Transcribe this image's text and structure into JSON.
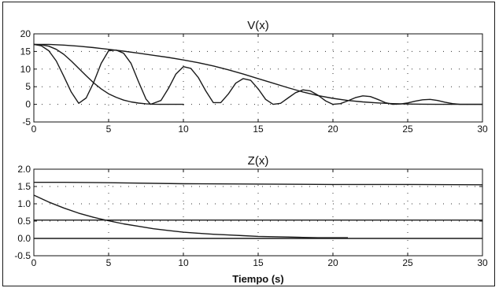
{
  "chart_data": [
    {
      "type": "line",
      "title": "V(x)",
      "xlabel": "",
      "ylabel": "",
      "xlim": [
        0,
        30
      ],
      "ylim": [
        -5,
        20
      ],
      "xticks": [
        0,
        5,
        10,
        15,
        20,
        25,
        30
      ],
      "yticks": [
        -5,
        0,
        5,
        10,
        15,
        20
      ],
      "grid": "dotted",
      "series": [
        {
          "x": [
            0,
            1,
            2,
            3,
            4,
            5,
            6,
            7,
            8,
            9,
            10,
            11,
            12,
            13,
            14,
            15,
            16,
            17,
            18,
            19,
            20,
            21,
            22,
            23,
            24,
            25,
            26,
            27,
            28,
            29,
            30
          ],
          "y": [
            17,
            17,
            16.8,
            16.5,
            16.1,
            15.6,
            15.1,
            14.5,
            13.9,
            13.3,
            12.6,
            11.8,
            10.9,
            9.8,
            8.6,
            7.3,
            6,
            4.7,
            3.5,
            2.5,
            1.7,
            1.1,
            0.7,
            0.4,
            0.2,
            0.1,
            0.05,
            0,
            0,
            0,
            0
          ]
        },
        {
          "x": [
            0,
            0.5,
            1,
            1.5,
            2,
            2.5,
            3,
            3.5,
            4,
            4.5,
            5,
            5.5,
            6,
            6.5,
            7,
            7.5,
            8,
            8.5,
            9,
            10
          ],
          "y": [
            17,
            16.9,
            16.5,
            15.6,
            14.2,
            12.3,
            10.2,
            8.1,
            6.1,
            4.4,
            3,
            2,
            1.2,
            0.7,
            0.35,
            0.15,
            0.05,
            0,
            0,
            0
          ]
        },
        {
          "x": [
            0,
            0.5,
            1,
            1.5,
            2,
            2.5,
            3,
            3.5,
            4,
            4.5,
            5,
            5.5,
            6,
            6.5,
            7,
            7.5,
            7.8,
            8.5,
            9,
            9.5,
            10,
            10.5,
            11,
            11.5,
            12,
            12.5,
            13,
            13.5,
            14,
            14.5,
            15,
            15.5,
            16,
            16.5,
            17,
            17.5,
            18,
            18.5,
            19,
            19.5,
            20,
            20.5,
            21,
            21.5,
            22,
            22.5,
            23,
            23.5,
            24,
            24.5,
            25,
            25.5,
            26,
            26.5,
            27,
            27.5,
            28,
            28.5,
            29,
            30
          ],
          "y": [
            17,
            16.6,
            15.2,
            12.3,
            8,
            3.5,
            0.3,
            1.8,
            6.2,
            11.6,
            15.2,
            15.4,
            14.5,
            11.6,
            6.4,
            1.5,
            0,
            1.1,
            4.5,
            8.6,
            10.7,
            10.2,
            7.6,
            3.8,
            0.5,
            0.5,
            2.9,
            6,
            7.3,
            6.8,
            4.4,
            1.4,
            0,
            0.3,
            1.8,
            3.3,
            4.1,
            3.8,
            2.6,
            1,
            0,
            0.2,
            1,
            1.9,
            2.4,
            2.2,
            1.4,
            0.5,
            0,
            0.1,
            0.4,
            0.9,
            1.3,
            1.4,
            1.1,
            0.6,
            0.2,
            0,
            0,
            0
          ]
        }
      ]
    },
    {
      "type": "line",
      "title": "Z(x)",
      "xlabel": "Tiempo (s)",
      "ylabel": "",
      "xlim": [
        0,
        30
      ],
      "ylim": [
        -0.5,
        2.0
      ],
      "xticks": [
        0,
        5,
        10,
        15,
        20,
        25,
        30
      ],
      "yticks": [
        -0.5,
        0.0,
        0.5,
        1.0,
        1.5,
        2.0
      ],
      "ytick_labels": [
        "-0.5",
        "0.0",
        "0.5",
        "1.0",
        "1.5",
        "2.0"
      ],
      "grid": "dotted",
      "series": [
        {
          "x": [
            0,
            2,
            5,
            10,
            15,
            20,
            25,
            30
          ],
          "y": [
            1.62,
            1.62,
            1.61,
            1.58,
            1.57,
            1.56,
            1.56,
            1.55
          ]
        },
        {
          "x": [
            0,
            30
          ],
          "y": [
            0.53,
            0.53
          ]
        },
        {
          "x": [
            0,
            30
          ],
          "y": [
            0.0,
            0.0
          ]
        },
        {
          "x": [
            0,
            1,
            2,
            3,
            4,
            5,
            6,
            7,
            8,
            9,
            10,
            11,
            12,
            13,
            14,
            15,
            16,
            17,
            18,
            19,
            20,
            21
          ],
          "y": [
            1.25,
            1.05,
            0.88,
            0.73,
            0.61,
            0.51,
            0.42,
            0.35,
            0.28,
            0.23,
            0.18,
            0.15,
            0.12,
            0.1,
            0.08,
            0.06,
            0.05,
            0.04,
            0.03,
            0.02,
            0.02,
            0.02
          ]
        }
      ]
    }
  ]
}
